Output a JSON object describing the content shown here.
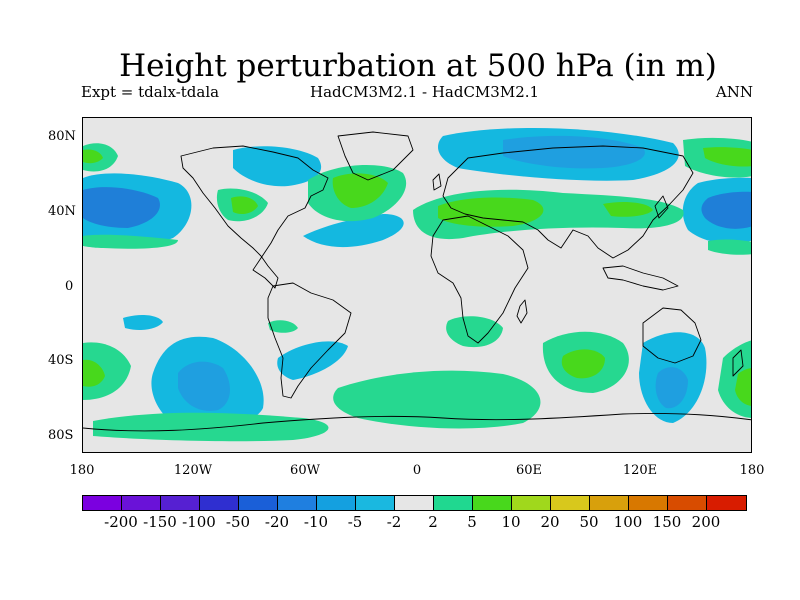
{
  "title": "Height perturbation at 500 hPa (in m)",
  "subtitle_left": "Expt = tdalx-tdala",
  "subtitle_center": "HadCM3M2.1 - HadCM3M2.1",
  "subtitle_right": "ANN",
  "lat_labels": [
    "80N",
    "40N",
    "0",
    "40S",
    "80S"
  ],
  "lon_labels": [
    "180",
    "120W",
    "60W",
    "0",
    "60E",
    "120E",
    "180"
  ],
  "legend": {
    "colors": [
      "#7b00e0",
      "#6a12d8",
      "#5620d2",
      "#2f2fd0",
      "#1a5fd8",
      "#1f7fe0",
      "#14a0e0",
      "#1ab8e0",
      "#e6e6e6",
      "#20d890",
      "#48d81c",
      "#a0d81c",
      "#d8c81c",
      "#d8a00c",
      "#d87800",
      "#d84c00",
      "#d81c00"
    ],
    "labels": [
      "-200",
      "-150",
      "-100",
      "-50",
      "-20",
      "-10",
      "-5",
      "-2",
      "2",
      "5",
      "10",
      "20",
      "50",
      "100",
      "150",
      "200"
    ]
  },
  "colors": {
    "neutral": "#e6e6e6",
    "neg_weak": "#14b8e0",
    "neg_mid": "#1f9fe0",
    "neg_strong": "#1f7fd8",
    "pos_weak": "#26d890",
    "pos_mid": "#48d81c"
  }
}
